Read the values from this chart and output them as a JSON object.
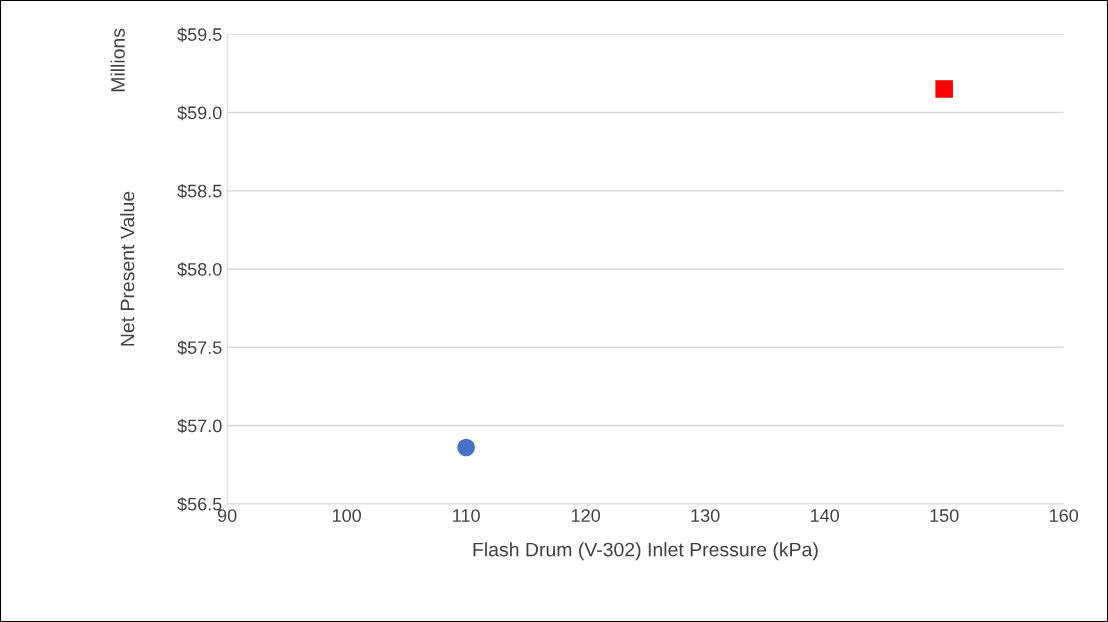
{
  "chart_data": {
    "type": "scatter",
    "xlabel": "Flash Drum (V-302) Inlet Pressure (kPa)",
    "ylabel": "Net Present Value",
    "annotations": [
      "Millions"
    ],
    "series": [
      {
        "x": [
          110
        ],
        "values": [
          56.86
        ],
        "color": "#4472c4",
        "marker": "circle"
      },
      {
        "x": [
          150
        ],
        "values": [
          59.15
        ],
        "color": "#ff0000",
        "marker": "square"
      }
    ],
    "xlim": [
      90,
      160
    ],
    "xticks": [
      90,
      100,
      110,
      120,
      130,
      140,
      150,
      160
    ],
    "ylim": [
      56.5,
      59.5
    ],
    "yticks": [
      {
        "value": 56.5,
        "label": "$56.5"
      },
      {
        "value": 57.0,
        "label": "$57.0"
      },
      {
        "value": 57.5,
        "label": "$57.5"
      },
      {
        "value": 58.0,
        "label": "$58.0"
      },
      {
        "value": 58.5,
        "label": "$58.5"
      },
      {
        "value": 59.0,
        "label": "$59.0"
      },
      {
        "value": 59.5,
        "label": "$59.5"
      }
    ],
    "grid": "y",
    "legend": false
  }
}
